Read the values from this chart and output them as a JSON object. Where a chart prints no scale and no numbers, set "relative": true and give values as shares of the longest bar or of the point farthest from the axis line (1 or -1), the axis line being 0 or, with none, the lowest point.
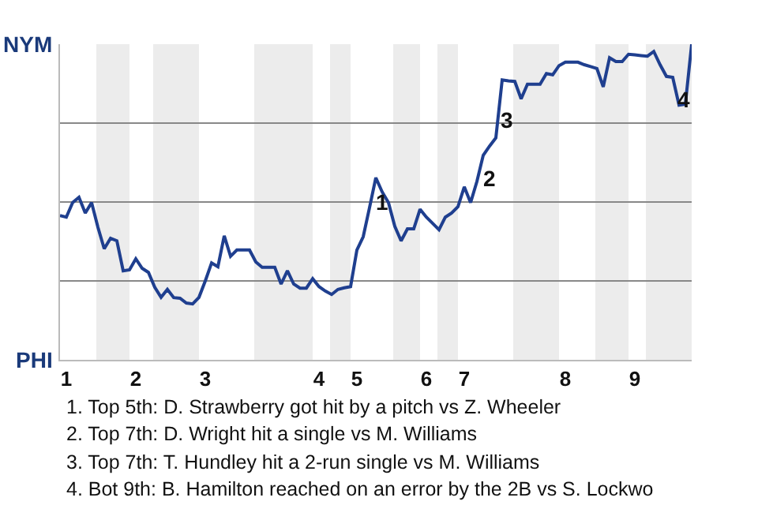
{
  "chart_data": {
    "type": "line",
    "relative": true,
    "categories": [
      null,
      "1",
      null,
      null,
      null,
      null,
      null,
      null,
      null,
      null,
      null,
      null,
      "2",
      null,
      null,
      null,
      null,
      null,
      null,
      null,
      null,
      null,
      null,
      "3",
      null,
      null,
      null,
      null,
      null,
      null,
      null,
      null,
      null,
      null,
      null,
      null,
      null,
      null,
      null,
      null,
      null,
      "4",
      null,
      null,
      null,
      null,
      null,
      "5",
      null,
      null,
      null,
      null,
      null,
      null,
      null,
      null,
      null,
      null,
      "6",
      null,
      null,
      null,
      null,
      null,
      "7",
      null,
      null,
      null,
      null,
      null,
      null,
      null,
      null,
      null,
      null,
      null,
      null,
      null,
      null,
      null,
      "8",
      null,
      null,
      null,
      null,
      null,
      null,
      null,
      null,
      null,
      null,
      "9",
      null,
      null,
      null,
      null,
      null,
      null,
      null,
      null,
      null
    ],
    "series": [
      {
        "color": "#1f3f8f",
        "values": [
          0.457,
          0.452,
          0.498,
          0.515,
          0.465,
          0.498,
          0.42,
          0.352,
          0.385,
          0.377,
          0.282,
          0.285,
          0.32,
          0.29,
          0.277,
          0.23,
          0.198,
          0.223,
          0.197,
          0.195,
          0.18,
          0.177,
          0.198,
          0.25,
          0.307,
          0.295,
          0.393,
          0.328,
          0.348,
          0.348,
          0.348,
          0.31,
          0.293,
          0.293,
          0.293,
          0.24,
          0.282,
          0.24,
          0.227,
          0.227,
          0.257,
          0.232,
          0.218,
          0.207,
          0.223,
          0.228,
          0.232,
          0.348,
          0.39,
          0.482,
          0.577,
          0.532,
          0.498,
          0.423,
          0.377,
          0.415,
          0.415,
          0.477,
          0.452,
          0.432,
          0.412,
          0.452,
          0.465,
          0.485,
          0.548,
          0.498,
          0.565,
          0.648,
          0.677,
          0.703,
          0.887,
          0.884,
          0.882,
          0.827,
          0.873,
          0.873,
          0.873,
          0.907,
          0.903,
          0.932,
          0.943,
          0.943,
          0.943,
          0.935,
          0.929,
          0.923,
          0.865,
          0.957,
          0.945,
          0.945,
          0.968,
          0.966,
          0.964,
          0.962,
          0.977,
          0.935,
          0.898,
          0.895,
          0.807,
          0.81,
          1
        ]
      }
    ],
    "marker": "none",
    "line_style": "solid",
    "ref_lines": [
      {
        "axis": "y",
        "value": 0.25,
        "color": "#888888"
      },
      {
        "axis": "y",
        "value": 0.5,
        "color": "#888888"
      },
      {
        "axis": "y",
        "value": 0.75,
        "color": "#888888"
      }
    ],
    "annotations": [
      "NYM",
      "PHI",
      "1",
      "2",
      "3",
      "4",
      "1. Top 5th: D. Strawberry got hit by a pitch vs Z. Wheeler",
      "2. Top 7th: D. Wright hit a single vs M. Williams",
      "3. Top 7th: T. Hundley hit a 2-run single vs M. Williams",
      "4. Bot 9th: B. Hamilton reached on an error by the 2B vs S. Lockwo"
    ]
  }
}
